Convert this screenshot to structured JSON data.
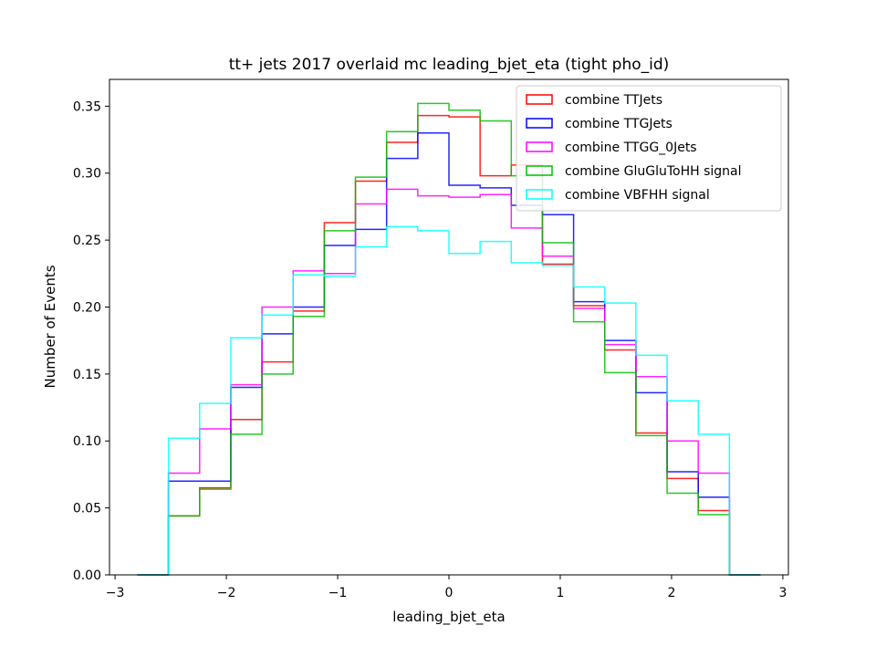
{
  "chart_data": {
    "type": "histogram",
    "title": "tt+ jets 2017 overlaid mc leading_bjet_eta (tight pho_id)",
    "xlabel": "leading_bjet_eta",
    "ylabel": "Number of Events",
    "xlim": [
      -3.05,
      3.05
    ],
    "ylim": [
      0,
      0.37
    ],
    "xticks": [
      -3,
      -2,
      -1,
      0,
      1,
      2,
      3
    ],
    "xtick_labels": [
      "−3",
      "−2",
      "−1",
      "0",
      "1",
      "2",
      "3"
    ],
    "yticks": [
      0.0,
      0.05,
      0.1,
      0.15,
      0.2,
      0.25,
      0.3,
      0.35
    ],
    "ytick_labels": [
      "0.00",
      "0.05",
      "0.10",
      "0.15",
      "0.20",
      "0.25",
      "0.30",
      "0.35"
    ],
    "grid": false,
    "legend_position": "top-right",
    "bin_edges": [
      -2.8,
      -2.52,
      -2.24,
      -1.96,
      -1.68,
      -1.4,
      -1.12,
      -0.84,
      -0.56,
      -0.28,
      0.0,
      0.28,
      0.56,
      0.84,
      1.12,
      1.4,
      1.68,
      1.96,
      2.24,
      2.52,
      2.8
    ],
    "series": [
      {
        "name": "combine TTJets",
        "color": "#ff0000",
        "values": [
          0,
          0.044,
          0.065,
          0.116,
          0.159,
          0.197,
          0.263,
          0.294,
          0.323,
          0.343,
          0.342,
          0.298,
          0.306,
          0.232,
          0.201,
          0.168,
          0.106,
          0.072,
          0.048,
          0
        ]
      },
      {
        "name": "combine TTGJets",
        "color": "#0000ff",
        "values": [
          0,
          0.07,
          0.07,
          0.14,
          0.18,
          0.2,
          0.246,
          0.258,
          0.311,
          0.33,
          0.291,
          0.289,
          0.276,
          0.269,
          0.204,
          0.175,
          0.136,
          0.077,
          0.058,
          0
        ]
      },
      {
        "name": "combine TTGG_0Jets",
        "color": "#ff00ff",
        "values": [
          0,
          0.076,
          0.109,
          0.142,
          0.2,
          0.227,
          0.225,
          0.277,
          0.288,
          0.283,
          0.282,
          0.284,
          0.259,
          0.238,
          0.199,
          0.172,
          0.148,
          0.1,
          0.076,
          0
        ]
      },
      {
        "name": "combine GluGluToHH signal",
        "color": "#00c000",
        "values": [
          0,
          0.044,
          0.064,
          0.105,
          0.15,
          0.193,
          0.257,
          0.297,
          0.331,
          0.352,
          0.347,
          0.339,
          0.298,
          0.248,
          0.189,
          0.151,
          0.104,
          0.061,
          0.045,
          0
        ]
      },
      {
        "name": "combine VBFHH signal",
        "color": "#00ffff",
        "values": [
          0,
          0.102,
          0.128,
          0.177,
          0.194,
          0.224,
          0.223,
          0.245,
          0.26,
          0.257,
          0.24,
          0.249,
          0.233,
          0.231,
          0.215,
          0.203,
          0.164,
          0.13,
          0.105,
          0
        ]
      }
    ]
  }
}
